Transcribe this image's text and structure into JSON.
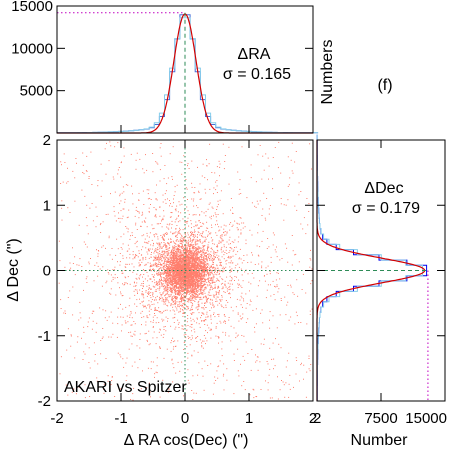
{
  "chart_data": [
    {
      "type": "scatter",
      "panel": "main",
      "xlabel": "Δ RA cos(Dec) (\")",
      "ylabel": "Δ Dec (\")",
      "xlim": [
        -2,
        2
      ],
      "ylim": [
        -2,
        2
      ],
      "x_ticks": [
        "-2",
        "-1",
        "0",
        "1",
        "2"
      ],
      "y_ticks": [
        "-2",
        "-1",
        "0",
        "1",
        "2"
      ],
      "annotation": "AKARI vs Spitzer",
      "point_color": "#ff7f6e",
      "center": [
        0,
        0
      ],
      "sigma_x": 0.165,
      "sigma_y": 0.179,
      "reference_lines": {
        "x": 0,
        "y": 0,
        "style": "dotted",
        "color": "#2e8b57"
      }
    },
    {
      "type": "line",
      "panel": "top-histogram",
      "title": "ΔRA",
      "sigma_label": "σ = 0.165",
      "ylabel": "Numbers",
      "xlim": [
        -2,
        2
      ],
      "ylim": [
        0,
        15000
      ],
      "y_ticks": [
        "5000",
        "10000",
        "15000"
      ],
      "peak": 14200,
      "sigma": 0.165,
      "series": [
        {
          "color": "#4a6fd8",
          "style": "steps"
        },
        {
          "color": "#87ceeb",
          "style": "steps"
        },
        {
          "color": "#d40000",
          "style": "gaussian-fit"
        }
      ],
      "reference_lines": {
        "peak_level_color": "#c000c0",
        "zero_color": "#2e8b57"
      }
    },
    {
      "type": "line",
      "panel": "right-histogram",
      "title": "ΔDec",
      "sigma_label": "σ = 0.179",
      "xlabel": "Number",
      "xlim": [
        0,
        15000
      ],
      "ylim": [
        -2,
        2
      ],
      "x_ticks": [
        "2",
        "7500",
        "15000"
      ],
      "peak": 13000,
      "sigma": 0.179,
      "series": [
        {
          "color": "#0000ee",
          "style": "steps"
        },
        {
          "color": "#87ceeb",
          "style": "steps"
        },
        {
          "color": "#d40000",
          "style": "gaussian-fit"
        }
      ],
      "reference_lines": {
        "peak_level_color": "#c000c0",
        "zero_color": "#2e8b57"
      }
    }
  ],
  "panel_label": "(f)"
}
